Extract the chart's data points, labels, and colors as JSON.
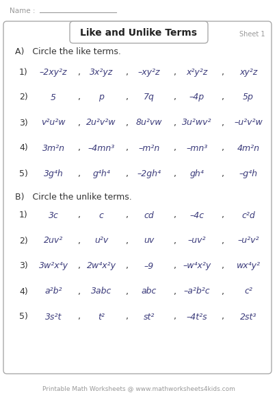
{
  "title": "Like and Unlike Terms",
  "sheet": "Sheet 1",
  "name_label": "Name : ",
  "section_A_header": "A)   Circle the like terms.",
  "section_B_header": "B)   Circle the unlike terms.",
  "footer": "Printable Math Worksheets @ www.mathworksheets4kids.com",
  "section_A": [
    [
      "1)",
      "–2xy²z",
      "3x²yz",
      "–xy²z",
      "x²y²z",
      "xy²z"
    ],
    [
      "2)",
      "5",
      "p",
      "7q",
      "–4p",
      "5p"
    ],
    [
      "3)",
      "v²u²w",
      "2u²v²w",
      "8u²vw",
      "3u²wv²",
      "–u²v²w"
    ],
    [
      "4)",
      "3m²n",
      "–4mn³",
      "–m²n",
      "–mn³",
      "4m²n"
    ],
    [
      "5)",
      "3g⁴h",
      "g⁴h⁴",
      "–2gh⁴",
      "gh⁴",
      "–g⁴h"
    ]
  ],
  "section_B": [
    [
      "1)",
      "3c",
      "c",
      "cd",
      "–4c",
      "c²d"
    ],
    [
      "2)",
      "2uv²",
      "u²v",
      "uv",
      "–uv²",
      "–u²v²"
    ],
    [
      "3)",
      "3w²x⁴y",
      "2w⁴x²y",
      "–9",
      "–w⁴x²y",
      "wx⁴y²"
    ],
    [
      "4)",
      "a²b²",
      "3abc",
      "abc",
      "–a²b²c",
      "c²"
    ],
    [
      "5)",
      "3s²t",
      "t²",
      "st²",
      "–4t²s",
      "2st³"
    ]
  ],
  "bg_color": "#ffffff",
  "border_color": "#aaaaaa",
  "text_color_term": "#3a3a7a",
  "text_color_label": "#333333",
  "text_color_gray": "#999999",
  "title_color": "#222222",
  "figsize": [
    4.06,
    5.76
  ],
  "dpi": 100
}
